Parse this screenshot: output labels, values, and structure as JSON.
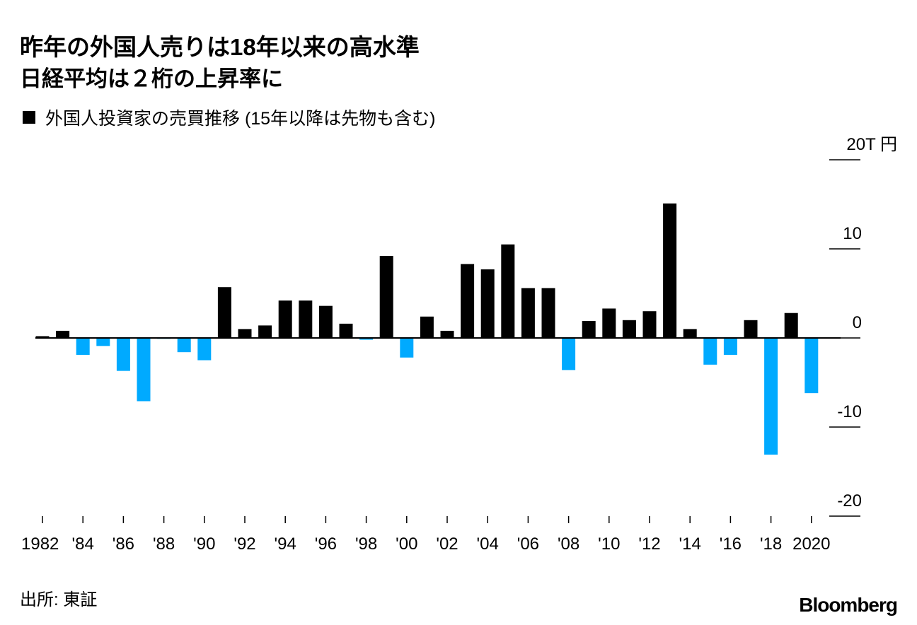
{
  "chart_data": {
    "type": "bar",
    "title": "昨年の外国人売りは18年以来の高水準",
    "subtitle": "日経平均は２桁の上昇率に",
    "legend": "外国人投資家の売買推移 (15年以降は先物も含む)",
    "unit_label": "20T 円",
    "source": "出所: 東証",
    "brand": "Bloomberg",
    "ylim": [
      -20,
      20
    ],
    "y_ticks": [
      {
        "value": 20,
        "label": "20T 円"
      },
      {
        "value": 10,
        "label": "10"
      },
      {
        "value": 0,
        "label": "0"
      },
      {
        "value": -10,
        "label": "-10"
      },
      {
        "value": -20,
        "label": "-20"
      }
    ],
    "x_tick_labels": [
      {
        "year": 1982,
        "label": "1982"
      },
      {
        "year": 1984,
        "label": "'84"
      },
      {
        "year": 1986,
        "label": "'86"
      },
      {
        "year": 1988,
        "label": "'88"
      },
      {
        "year": 1990,
        "label": "'90"
      },
      {
        "year": 1992,
        "label": "'92"
      },
      {
        "year": 1994,
        "label": "'94"
      },
      {
        "year": 1996,
        "label": "'96"
      },
      {
        "year": 1998,
        "label": "'98"
      },
      {
        "year": 2000,
        "label": "'00"
      },
      {
        "year": 2002,
        "label": "'02"
      },
      {
        "year": 2004,
        "label": "'04"
      },
      {
        "year": 2006,
        "label": "'06"
      },
      {
        "year": 2008,
        "label": "'08"
      },
      {
        "year": 2010,
        "label": "'10"
      },
      {
        "year": 2012,
        "label": "'12"
      },
      {
        "year": 2014,
        "label": "'14"
      },
      {
        "year": 2016,
        "label": "'16"
      },
      {
        "year": 2018,
        "label": "'18"
      },
      {
        "year": 2020,
        "label": "2020"
      }
    ],
    "colors": {
      "positive": "#000000",
      "negative": "#00aaff"
    },
    "series": [
      {
        "name": "外国人投資家の売買推移",
        "x": [
          1982,
          1983,
          1984,
          1985,
          1986,
          1987,
          1988,
          1989,
          1990,
          1991,
          1992,
          1993,
          1994,
          1995,
          1996,
          1997,
          1998,
          1999,
          2000,
          2001,
          2002,
          2003,
          2004,
          2005,
          2006,
          2007,
          2008,
          2009,
          2010,
          2011,
          2012,
          2013,
          2014,
          2015,
          2016,
          2017,
          2018,
          2019,
          2020,
          2021
        ],
        "values": [
          0.2,
          0.8,
          -1.9,
          -0.9,
          -3.7,
          -7.1,
          -0.1,
          -1.6,
          -2.5,
          5.7,
          1.0,
          1.4,
          4.2,
          4.2,
          3.6,
          1.6,
          -0.2,
          9.2,
          -2.2,
          2.4,
          0.8,
          8.3,
          7.7,
          10.5,
          5.6,
          5.6,
          -3.6,
          1.9,
          3.3,
          2.0,
          3.0,
          15.1,
          1.0,
          -3.0,
          -1.9,
          2.0,
          -13.1,
          2.8,
          -6.2,
          0
        ]
      }
    ]
  }
}
